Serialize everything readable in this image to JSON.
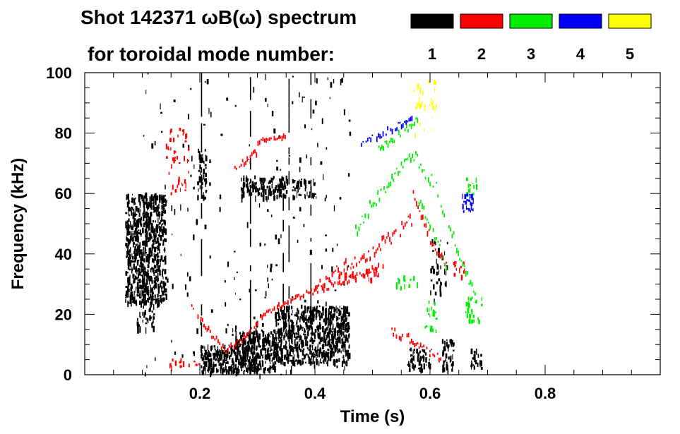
{
  "chart_data": {
    "type": "heatmap",
    "title_line1": "Shot 142371 ωB(ω) spectrum",
    "title_line2": "for toroidal mode number:",
    "xlabel": "Time (s)",
    "ylabel": "Frequency (kHz)",
    "xlim": [
      0.0,
      1.0
    ],
    "ylim": [
      0,
      100
    ],
    "x_ticks": [
      0.2,
      0.4,
      0.6,
      0.8
    ],
    "x_tick_labels": [
      "0.2",
      "0.4",
      "0.6",
      "0.8"
    ],
    "y_ticks": [
      0,
      20,
      40,
      60,
      80,
      100
    ],
    "y_tick_labels": [
      "0",
      "20",
      "40",
      "60",
      "80",
      "100"
    ],
    "x_minor_step": 0.05,
    "y_minor_step": 5,
    "grid": false,
    "legend_position": "top-right",
    "legend": [
      {
        "label": "1",
        "color": "#000000"
      },
      {
        "label": "2",
        "color": "#ff0000"
      },
      {
        "label": "3",
        "color": "#00ee00"
      },
      {
        "label": "4",
        "color": "#0000ff"
      },
      {
        "label": "5",
        "color": "#ffff00"
      }
    ],
    "series": [
      {
        "name": "1",
        "color": "#000000",
        "blobs": [
          {
            "t": [
              0.07,
              0.14
            ],
            "f": [
              24,
              60
            ],
            "density": 0.85
          },
          {
            "t": [
              0.09,
              0.12
            ],
            "f": [
              15,
              30
            ],
            "density": 0.45
          },
          {
            "t": [
              0.195,
              0.21
            ],
            "f": [
              58,
              75
            ],
            "density": 0.45
          },
          {
            "t": [
              0.2,
              0.3
            ],
            "f": [
              1,
              10
            ],
            "density": 0.9
          },
          {
            "t": [
              0.26,
              0.33
            ],
            "f": [
              2,
              15
            ],
            "density": 0.8
          },
          {
            "t": [
              0.33,
              0.46
            ],
            "f": [
              4,
              23
            ],
            "density": 0.88
          },
          {
            "t": [
              0.27,
              0.35
            ],
            "f": [
              59,
              66
            ],
            "density": 0.8
          },
          {
            "t": [
              0.36,
              0.4
            ],
            "f": [
              59,
              65
            ],
            "density": 0.55
          },
          {
            "t": [
              0.56,
              0.6
            ],
            "f": [
              2,
              9
            ],
            "density": 0.55
          },
          {
            "t": [
              0.62,
              0.64
            ],
            "f": [
              2,
              12
            ],
            "density": 0.65
          },
          {
            "t": [
              0.67,
              0.69
            ],
            "f": [
              2,
              9
            ],
            "density": 0.5
          },
          {
            "t": [
              0.6,
              0.63
            ],
            "f": [
              25,
              45
            ],
            "density": 0.18
          },
          {
            "t": [
              0.1,
              0.3
            ],
            "f": [
              0,
              100
            ],
            "density": 0.015
          },
          {
            "t": [
              0.3,
              0.46
            ],
            "f": [
              0,
              100
            ],
            "density": 0.02
          }
        ],
        "streaks": [
          {
            "t": 0.203,
            "f": [
              0,
              100
            ]
          },
          {
            "t": 0.288,
            "f": [
              10,
              100
            ]
          },
          {
            "t": 0.355,
            "f": [
              8,
              98
            ]
          },
          {
            "t": 0.393,
            "f": [
              18,
              100
            ]
          },
          {
            "t": 0.345,
            "f": [
              20,
              60
            ]
          }
        ]
      },
      {
        "name": "2",
        "color": "#ff0000",
        "tracks": [
          {
            "t": [
              0.185,
              0.225,
              0.245,
              0.275,
              0.31,
              0.36,
              0.42,
              0.48,
              0.52
            ],
            "f": [
              22,
              12,
              8,
              12,
              20,
              25,
              29,
              33,
              37
            ],
            "jitter": 1.0
          },
          {
            "t": [
              0.4,
              0.45,
              0.5,
              0.55,
              0.57
            ],
            "f": [
              28,
              36,
              41,
              48,
              52
            ],
            "jitter": 2.2
          },
          {
            "t": [
              0.3,
              0.32,
              0.35
            ],
            "f": [
              77,
              78,
              79
            ],
            "jitter": 0.6
          },
          {
            "t": [
              0.26,
              0.3
            ],
            "f": [
              68,
              74
            ],
            "jitter": 1.0
          },
          {
            "t": [
              0.53,
              0.58,
              0.62
            ],
            "f": [
              15,
              10,
              5
            ],
            "jitter": 1.4
          },
          {
            "t": [
              0.57,
              0.6,
              0.63
            ],
            "f": [
              60,
              45,
              35
            ],
            "jitter": 1.5
          }
        ],
        "blobs": [
          {
            "t": [
              0.14,
              0.2
            ],
            "f": [
              3,
              6
            ],
            "density": 0.25
          },
          {
            "t": [
              0.14,
              0.18
            ],
            "f": [
              60,
              82
            ],
            "density": 0.15
          },
          {
            "t": [
              0.64,
              0.66
            ],
            "f": [
              33,
              38
            ],
            "density": 0.4
          },
          {
            "t": [
              0.44,
              0.51
            ],
            "f": [
              32,
              36
            ],
            "density": 0.25
          }
        ]
      },
      {
        "name": "3",
        "color": "#00ee00",
        "tracks": [
          {
            "t": [
              0.47,
              0.5,
              0.53,
              0.56,
              0.58
            ],
            "f": [
              48,
              57,
              64,
              70,
              73
            ],
            "jitter": 2.2
          },
          {
            "t": [
              0.58,
              0.61,
              0.64,
              0.68
            ],
            "f": [
              70,
              62,
              45,
              25
            ],
            "jitter": 2.0
          },
          {
            "t": [
              0.51,
              0.55,
              0.58
            ],
            "f": [
              75,
              80,
              85
            ],
            "jitter": 1.2
          },
          {
            "t": [
              0.58,
              0.61,
              0.63
            ],
            "f": [
              58,
              45,
              35
            ],
            "jitter": 1.6
          }
        ],
        "blobs": [
          {
            "t": [
              0.54,
              0.58
            ],
            "f": [
              29,
              33
            ],
            "density": 0.25
          },
          {
            "t": [
              0.66,
              0.69
            ],
            "f": [
              18,
              27
            ],
            "density": 0.3
          },
          {
            "t": [
              0.59,
              0.61
            ],
            "f": [
              15,
              25
            ],
            "density": 0.3
          },
          {
            "t": [
              0.66,
              0.68
            ],
            "f": [
              60,
              68
            ],
            "density": 0.2
          }
        ]
      },
      {
        "name": "4",
        "color": "#0000ff",
        "tracks": [
          {
            "t": [
              0.48,
              0.52,
              0.56,
              0.57
            ],
            "f": [
              77,
              80,
              84,
              86
            ],
            "jitter": 1.1
          }
        ],
        "blobs": [
          {
            "t": [
              0.655,
              0.675
            ],
            "f": [
              54,
              61
            ],
            "density": 0.5
          }
        ]
      },
      {
        "name": "5",
        "color": "#ffff00",
        "blobs": [
          {
            "t": [
              0.57,
              0.61
            ],
            "f": [
              80,
              98
            ],
            "density": 0.12
          }
        ]
      }
    ]
  }
}
